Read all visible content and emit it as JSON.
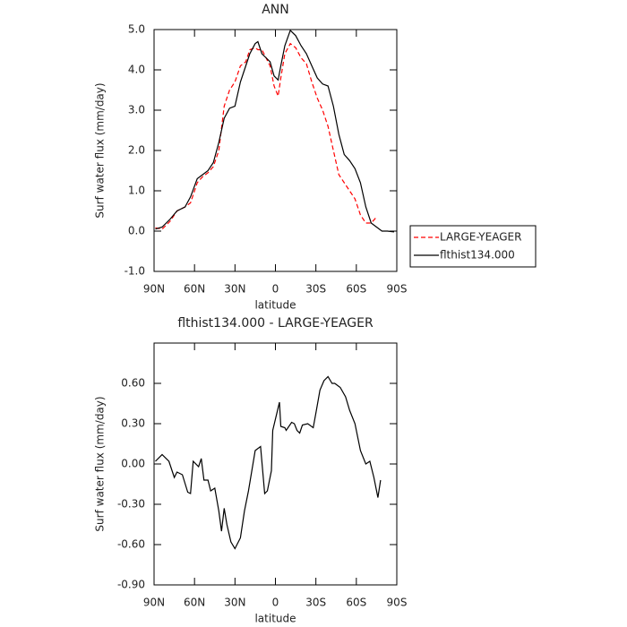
{
  "chart_data": [
    {
      "type": "line",
      "title": "ANN",
      "xlabel": "latitude",
      "ylabel": "Surf water flux (mm/day)",
      "x": [
        89,
        84,
        78,
        73,
        67,
        63,
        58,
        54,
        50,
        46,
        42,
        38,
        34,
        30,
        26,
        22,
        19,
        15,
        13,
        10,
        7,
        4,
        1,
        -2,
        -4,
        -7,
        -11,
        -15,
        -19,
        -23,
        -27,
        -31,
        -35,
        -39,
        -43,
        -47,
        -51,
        -55,
        -59,
        -63,
        -67,
        -71,
        -75,
        -79,
        -83,
        -88
      ],
      "series": [
        {
          "name": "LARGE-YEAGER",
          "color": "#ff0000",
          "dash": "dashed",
          "values": [
            0.08,
            0.05,
            0.25,
            0.5,
            0.6,
            0.7,
            1.2,
            1.35,
            1.45,
            1.6,
            2.0,
            3.1,
            3.5,
            3.7,
            4.1,
            4.2,
            4.5,
            4.55,
            4.5,
            4.5,
            4.3,
            4.1,
            3.6,
            3.35,
            3.8,
            4.4,
            4.65,
            4.55,
            4.3,
            4.15,
            3.7,
            3.3,
            3.0,
            2.6,
            2.0,
            1.4,
            1.2,
            1.0,
            0.8,
            0.4,
            0.2,
            0.2,
            0.35,
            null,
            null,
            null
          ]
        },
        {
          "name": "flthist134.000",
          "color": "#000000",
          "dash": "solid",
          "values": [
            0.05,
            0.1,
            0.3,
            0.5,
            0.6,
            0.85,
            1.3,
            1.4,
            1.5,
            1.7,
            2.2,
            2.8,
            3.05,
            3.1,
            3.7,
            4.1,
            4.4,
            4.65,
            4.7,
            4.4,
            4.3,
            4.2,
            3.85,
            3.75,
            4.1,
            4.6,
            4.98,
            4.85,
            4.6,
            4.4,
            4.1,
            3.8,
            3.65,
            3.6,
            3.1,
            2.4,
            1.9,
            1.75,
            1.55,
            1.2,
            0.6,
            0.2,
            0.1,
            0.0,
            0.0,
            -0.02
          ]
        }
      ],
      "xlim": [
        90,
        -90
      ],
      "xticks": [
        {
          "value": 90,
          "label": "90N"
        },
        {
          "value": 60,
          "label": "60N"
        },
        {
          "value": 30,
          "label": "30N"
        },
        0,
        {
          "value": -30,
          "label": "30S"
        },
        {
          "value": -60,
          "label": "60S"
        },
        {
          "value": -90,
          "label": "90S"
        }
      ],
      "ylim": [
        -1,
        5
      ],
      "yticks": [
        {
          "value": 5,
          "label": "5.0"
        },
        {
          "value": 4,
          "label": "4.0"
        },
        {
          "value": 3,
          "label": "3.0"
        },
        {
          "value": 2,
          "label": "2.0"
        },
        {
          "value": 1,
          "label": "1.0"
        },
        {
          "value": 0,
          "label": "0.0"
        },
        {
          "value": -1,
          "label": "-1.0"
        }
      ],
      "legend": "right"
    },
    {
      "type": "line",
      "title": "flthist134.000 - LARGE-YEAGER",
      "xlabel": "latitude",
      "ylabel": "Surf water flux (mm/day)",
      "x": [
        89,
        84,
        79,
        75,
        73,
        69,
        65,
        63,
        61,
        57,
        55,
        53,
        50,
        48,
        45,
        42,
        40,
        38,
        36,
        33,
        30,
        26,
        23,
        20,
        15,
        11,
        8,
        6,
        3,
        2,
        -3,
        -4,
        -7,
        -8,
        -12,
        -14,
        -16,
        -18,
        -20,
        -24,
        -28,
        -30,
        -33,
        -36,
        -39,
        -42,
        -44,
        -48,
        -52,
        -55,
        -59,
        -63,
        -67,
        -70,
        -73,
        -76,
        -78
      ],
      "series": [
        {
          "name": "flthist134.000 - LARGE-YEAGER",
          "color": "#000000",
          "dash": "solid",
          "values": [
            0.02,
            0.07,
            0.02,
            -0.1,
            -0.06,
            -0.08,
            -0.21,
            -0.22,
            0.02,
            -0.02,
            0.04,
            -0.12,
            -0.12,
            -0.2,
            -0.18,
            -0.35,
            -0.5,
            -0.33,
            -0.45,
            -0.58,
            -0.63,
            -0.55,
            -0.35,
            -0.2,
            0.1,
            0.13,
            -0.22,
            -0.2,
            -0.05,
            0.25,
            0.46,
            0.28,
            0.27,
            0.25,
            0.31,
            0.3,
            0.25,
            0.23,
            0.29,
            0.3,
            0.27,
            0.38,
            0.55,
            0.62,
            0.65,
            0.6,
            0.6,
            0.57,
            0.5,
            0.4,
            0.3,
            0.1,
            0.0,
            0.02,
            -0.1,
            -0.25,
            -0.12
          ]
        }
      ],
      "xlim": [
        90,
        -90
      ],
      "xticks": [
        {
          "value": 90,
          "label": "90N"
        },
        {
          "value": 60,
          "label": "60N"
        },
        {
          "value": 30,
          "label": "30N"
        },
        0,
        {
          "value": -30,
          "label": "30S"
        },
        {
          "value": -60,
          "label": "60S"
        },
        {
          "value": -90,
          "label": "90S"
        }
      ],
      "ylim": [
        -0.9,
        0.9
      ],
      "yticks": [
        {
          "value": 0.6,
          "label": "0.60"
        },
        {
          "value": 0.3,
          "label": "0.30"
        },
        {
          "value": 0,
          "label": "0.00"
        },
        {
          "value": -0.3,
          "label": "-0.30"
        },
        {
          "value": -0.6,
          "label": "-0.60"
        },
        {
          "value": -0.9,
          "label": "-0.90"
        }
      ]
    }
  ]
}
